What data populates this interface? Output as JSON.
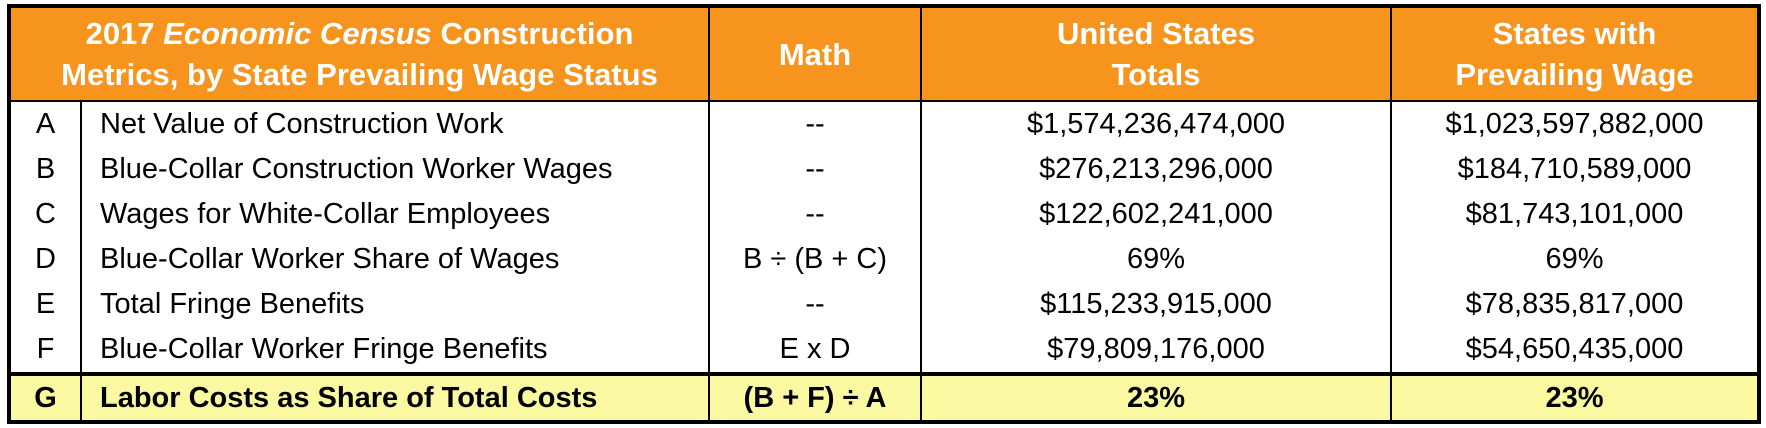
{
  "table": {
    "header": {
      "metrics_title": {
        "line1_pre": "2017",
        "line1_italic": "Economic Census",
        "line1_post": "Construction",
        "line2": "Metrics, by State Prevailing Wage Status"
      },
      "math_label": "Math",
      "us_totals": {
        "line1": "United States",
        "line2": "Totals"
      },
      "states_pw": {
        "line1": "States with",
        "line2": "Prevailing Wage"
      }
    },
    "rows": [
      {
        "letter": "A",
        "label": "Net Value of Construction Work",
        "math": "--",
        "us": "$1,574,236,474,000",
        "states": "$1,023,597,882,000"
      },
      {
        "letter": "B",
        "label": "Blue-Collar Construction Worker Wages",
        "math": "--",
        "us": "$276,213,296,000",
        "states": "$184,710,589,000"
      },
      {
        "letter": "C",
        "label": "Wages for White-Collar Employees",
        "math": "--",
        "us": "$122,602,241,000",
        "states": "$81,743,101,000"
      },
      {
        "letter": "D",
        "label": "Blue-Collar Worker Share of Wages",
        "math": "B ÷ (B + C)",
        "us": "69%",
        "states": "69%"
      },
      {
        "letter": "E",
        "label": "Total Fringe Benefits",
        "math": "--",
        "us": "$115,233,915,000",
        "states": "$78,835,817,000"
      },
      {
        "letter": "F",
        "label": "Blue-Collar Worker Fringe Benefits",
        "math": "E x D",
        "us": "$79,809,176,000",
        "states": "$54,650,435,000"
      },
      {
        "letter": "G",
        "label": "Labor Costs as Share of Total Costs",
        "math": "(B + F) ÷ A",
        "us": "23%",
        "states": "23%"
      }
    ]
  },
  "colors": {
    "header_bg": "#F7941E",
    "header_text": "#FFFFFF",
    "highlight_bg": "#FAF8A0",
    "border": "#000000"
  },
  "chart_data": {
    "type": "table",
    "title": "2017 Economic Census Construction Metrics, by State Prevailing Wage Status",
    "columns": [
      "Row",
      "Metric",
      "Math",
      "United States Totals",
      "States with Prevailing Wage"
    ],
    "rows": [
      [
        "A",
        "Net Value of Construction Work",
        "--",
        "$1,574,236,474,000",
        "$1,023,597,882,000"
      ],
      [
        "B",
        "Blue-Collar Construction Worker Wages",
        "--",
        "$276,213,296,000",
        "$184,710,589,000"
      ],
      [
        "C",
        "Wages for White-Collar Employees",
        "--",
        "$122,602,241,000",
        "$81,743,101,000"
      ],
      [
        "D",
        "Blue-Collar Worker Share of Wages",
        "B ÷ (B + C)",
        "69%",
        "69%"
      ],
      [
        "E",
        "Total Fringe Benefits",
        "--",
        "$115,233,915,000",
        "$78,835,817,000"
      ],
      [
        "F",
        "Blue-Collar Worker Fringe Benefits",
        "E x D",
        "$79,809,176,000",
        "$54,650,435,000"
      ],
      [
        "G",
        "Labor Costs as Share of Total Costs",
        "(B + F) ÷ A",
        "23%",
        "23%"
      ]
    ],
    "highlighted_row": "G",
    "layout": {
      "header_background": "#F7941E",
      "highlight_background": "#FAF8A0",
      "grid": "partial"
    }
  }
}
